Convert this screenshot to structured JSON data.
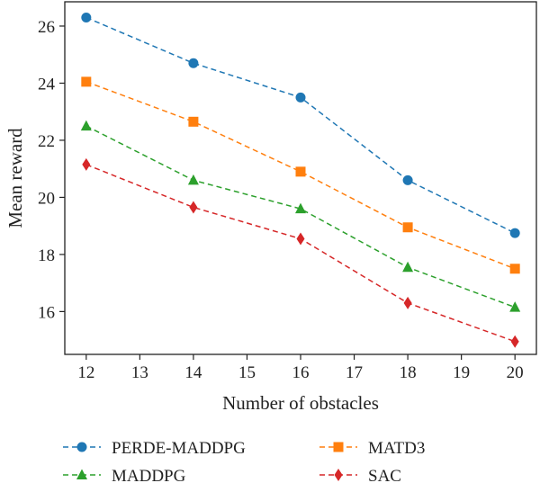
{
  "chart_data": {
    "type": "line",
    "title": "",
    "xlabel": "Number of obstacles",
    "ylabel": "Mean reward",
    "xlim": [
      11.6,
      20.4
    ],
    "ylim": [
      14.5,
      26.85
    ],
    "xticks": [
      12,
      13,
      14,
      15,
      16,
      17,
      18,
      19,
      20
    ],
    "yticks": [
      16,
      18,
      20,
      22,
      24,
      26
    ],
    "x": [
      12,
      14,
      16,
      18,
      20
    ],
    "grid": false,
    "legend_position": "bottom",
    "series": [
      {
        "name": "PERDE-MADDPG",
        "values": [
          26.3,
          24.7,
          23.5,
          20.6,
          18.75
        ],
        "color": "#1f77b4",
        "marker": "circle",
        "line_style": "dashed"
      },
      {
        "name": "MATD3",
        "values": [
          24.05,
          22.65,
          20.9,
          18.95,
          17.5
        ],
        "color": "#ff7f0e",
        "marker": "square",
        "line_style": "dashed"
      },
      {
        "name": "MADDPG",
        "values": [
          22.5,
          20.6,
          19.6,
          17.55,
          16.15
        ],
        "color": "#2ca02c",
        "marker": "triangle",
        "line_style": "dashed"
      },
      {
        "name": "SAC",
        "values": [
          21.15,
          19.65,
          18.55,
          16.3,
          14.95
        ],
        "color": "#d62728",
        "marker": "diamond",
        "line_style": "dashed"
      }
    ]
  }
}
